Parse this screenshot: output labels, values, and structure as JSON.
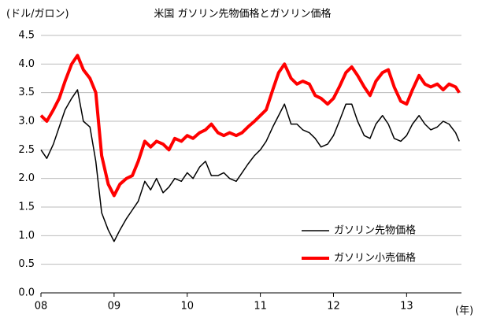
{
  "chart_data": {
    "type": "line",
    "title": "米国 ガソリン先物価格とガソリン価格",
    "y_label": "(ドル/ガロン)",
    "x_label": "(年)",
    "x": [
      2008,
      2008.08,
      2008.17,
      2008.25,
      2008.33,
      2008.42,
      2008.5,
      2008.58,
      2008.67,
      2008.75,
      2008.83,
      2008.92,
      2009,
      2009.08,
      2009.17,
      2009.25,
      2009.33,
      2009.42,
      2009.5,
      2009.58,
      2009.67,
      2009.75,
      2009.83,
      2009.92,
      2010,
      2010.08,
      2010.17,
      2010.25,
      2010.33,
      2010.42,
      2010.5,
      2010.58,
      2010.67,
      2010.75,
      2010.83,
      2010.92,
      2011,
      2011.08,
      2011.17,
      2011.25,
      2011.33,
      2011.42,
      2011.5,
      2011.58,
      2011.67,
      2011.75,
      2011.83,
      2011.92,
      2012,
      2012.08,
      2012.17,
      2012.25,
      2012.33,
      2012.42,
      2012.5,
      2012.58,
      2012.67,
      2012.75,
      2012.83,
      2012.92,
      2013,
      2013.08,
      2013.17,
      2013.25,
      2013.33,
      2013.42,
      2013.5,
      2013.58,
      2013.67,
      2013.72
    ],
    "series": [
      {
        "name": "ガソリン先物価格",
        "color": "#000000",
        "width": 1.5,
        "values": [
          2.5,
          2.35,
          2.6,
          2.9,
          3.2,
          3.4,
          3.55,
          3.0,
          2.9,
          2.3,
          1.4,
          1.1,
          0.9,
          1.1,
          1.3,
          1.45,
          1.6,
          1.95,
          1.8,
          2.0,
          1.75,
          1.85,
          2.0,
          1.95,
          2.1,
          2.0,
          2.2,
          2.3,
          2.05,
          2.05,
          2.1,
          2.0,
          1.95,
          2.1,
          2.25,
          2.4,
          2.5,
          2.65,
          2.9,
          3.1,
          3.3,
          2.95,
          2.95,
          2.85,
          2.8,
          2.7,
          2.55,
          2.6,
          2.75,
          3.0,
          3.3,
          3.3,
          3.0,
          2.75,
          2.7,
          2.95,
          3.1,
          2.95,
          2.7,
          2.65,
          2.75,
          2.95,
          3.1,
          2.95,
          2.85,
          2.9,
          3.0,
          2.95,
          2.8,
          2.65
        ]
      },
      {
        "name": "ガソリン小売価格",
        "color": "#ff0000",
        "width": 4,
        "values": [
          3.1,
          3.0,
          3.2,
          3.4,
          3.7,
          4.0,
          4.15,
          3.9,
          3.75,
          3.5,
          2.4,
          1.9,
          1.7,
          1.9,
          2.0,
          2.05,
          2.3,
          2.65,
          2.55,
          2.65,
          2.6,
          2.5,
          2.7,
          2.65,
          2.75,
          2.7,
          2.8,
          2.85,
          2.95,
          2.8,
          2.75,
          2.8,
          2.75,
          2.8,
          2.9,
          3.0,
          3.1,
          3.2,
          3.55,
          3.85,
          4.0,
          3.75,
          3.65,
          3.7,
          3.65,
          3.45,
          3.4,
          3.3,
          3.4,
          3.6,
          3.85,
          3.95,
          3.8,
          3.6,
          3.45,
          3.7,
          3.85,
          3.9,
          3.6,
          3.35,
          3.3,
          3.55,
          3.8,
          3.65,
          3.6,
          3.65,
          3.55,
          3.65,
          3.6,
          3.5
        ]
      }
    ],
    "xlim": [
      2008,
      2013.75
    ],
    "xticks": [
      {
        "value": 2008,
        "label": "08"
      },
      {
        "value": 2009,
        "label": "09"
      },
      {
        "value": 2010,
        "label": "10"
      },
      {
        "value": 2011,
        "label": "11"
      },
      {
        "value": 2012,
        "label": "12"
      },
      {
        "value": 2013,
        "label": "13"
      }
    ],
    "ylim": [
      0,
      4.5
    ],
    "yticks": [
      {
        "value": 0,
        "label": "0.0"
      },
      {
        "value": 0.5,
        "label": "0.5"
      },
      {
        "value": 1,
        "label": "1.0"
      },
      {
        "value": 1.5,
        "label": "1.5"
      },
      {
        "value": 2,
        "label": "2.0"
      },
      {
        "value": 2.5,
        "label": "2.5"
      },
      {
        "value": 3,
        "label": "3.0"
      },
      {
        "value": 3.5,
        "label": "3.5"
      },
      {
        "value": 4,
        "label": "4.0"
      },
      {
        "value": 4.5,
        "label": "4.5"
      }
    ],
    "grid": true
  }
}
